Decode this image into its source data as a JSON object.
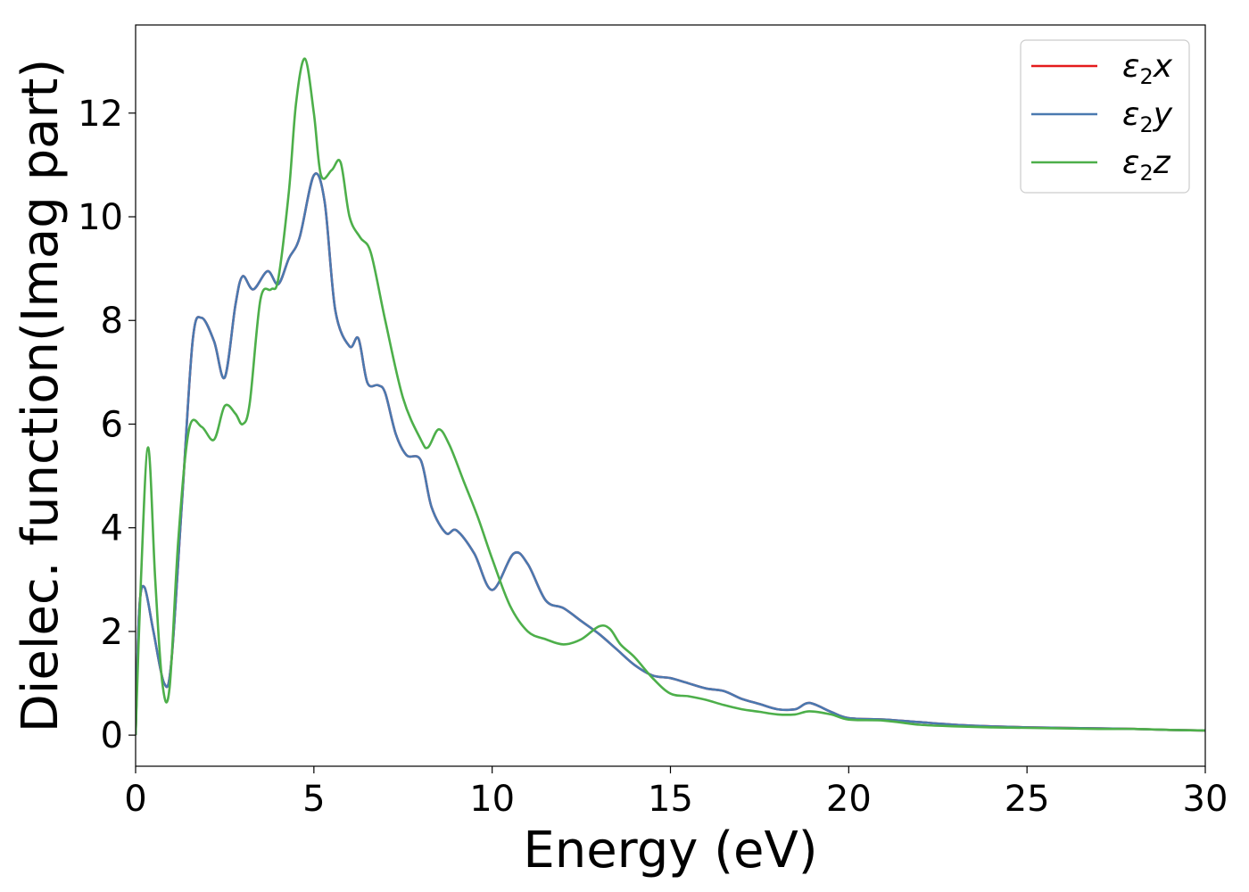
{
  "chart_data": {
    "type": "line",
    "title": "",
    "xlabel": "Energy (eV)",
    "ylabel": "Dielec. function(Imag part)",
    "xlim": [
      0,
      30
    ],
    "ylim": [
      -0.6,
      13.7
    ],
    "xticks": [
      "0",
      "5",
      "10",
      "15",
      "20",
      "25",
      "30"
    ],
    "yticks": [
      "0",
      "2",
      "4",
      "6",
      "8",
      "10",
      "12"
    ],
    "grid": false,
    "legend_position": "top-right",
    "series": [
      {
        "name": "ε2x",
        "label_main": "ε",
        "label_sub": "2",
        "label_tail": "x",
        "color": "#e41a1c",
        "x": [
          0.0,
          0.1,
          0.25,
          0.5,
          0.8,
          1.0,
          1.3,
          1.6,
          1.85,
          2.2,
          2.5,
          2.8,
          3.0,
          3.3,
          3.7,
          4.0,
          4.3,
          4.6,
          5.0,
          5.3,
          5.6,
          6.0,
          6.25,
          6.5,
          6.8,
          7.0,
          7.3,
          7.6,
          8.0,
          8.3,
          8.7,
          9.0,
          9.5,
          10.0,
          10.6,
          11.0,
          11.5,
          12.0,
          12.5,
          13.0,
          13.5,
          14.0,
          14.5,
          15.0,
          15.5,
          16.0,
          16.5,
          17.0,
          17.5,
          18.0,
          18.5,
          18.9,
          19.5,
          20.0,
          21.0,
          22.0,
          23.0,
          24.0,
          25.0,
          26.0,
          27.0,
          28.0,
          29.0,
          30.0
        ],
        "y": [
          0.0,
          2.4,
          2.85,
          2.0,
          1.0,
          1.4,
          4.5,
          7.6,
          8.05,
          7.6,
          6.9,
          8.3,
          8.85,
          8.6,
          8.95,
          8.7,
          9.2,
          9.6,
          10.8,
          10.3,
          8.2,
          7.5,
          7.65,
          6.8,
          6.75,
          6.6,
          5.8,
          5.4,
          5.3,
          4.4,
          3.9,
          3.95,
          3.5,
          2.8,
          3.5,
          3.3,
          2.6,
          2.45,
          2.2,
          1.95,
          1.65,
          1.35,
          1.15,
          1.1,
          1.0,
          0.9,
          0.85,
          0.7,
          0.6,
          0.5,
          0.5,
          0.62,
          0.45,
          0.33,
          0.3,
          0.25,
          0.2,
          0.17,
          0.15,
          0.14,
          0.13,
          0.12,
          0.1,
          0.09
        ]
      },
      {
        "name": "ε2y",
        "label_main": "ε",
        "label_sub": "2",
        "label_tail": "y",
        "color": "#4a79b0",
        "x": [
          0.0,
          0.1,
          0.25,
          0.5,
          0.8,
          1.0,
          1.3,
          1.6,
          1.85,
          2.2,
          2.5,
          2.8,
          3.0,
          3.3,
          3.7,
          4.0,
          4.3,
          4.6,
          5.0,
          5.3,
          5.6,
          6.0,
          6.25,
          6.5,
          6.8,
          7.0,
          7.3,
          7.6,
          8.0,
          8.3,
          8.7,
          9.0,
          9.5,
          10.0,
          10.6,
          11.0,
          11.5,
          12.0,
          12.5,
          13.0,
          13.5,
          14.0,
          14.5,
          15.0,
          15.5,
          16.0,
          16.5,
          17.0,
          17.5,
          18.0,
          18.5,
          18.9,
          19.5,
          20.0,
          21.0,
          22.0,
          23.0,
          24.0,
          25.0,
          26.0,
          27.0,
          28.0,
          29.0,
          30.0
        ],
        "y": [
          0.0,
          2.4,
          2.85,
          2.0,
          1.0,
          1.4,
          4.5,
          7.6,
          8.05,
          7.6,
          6.9,
          8.3,
          8.85,
          8.6,
          8.95,
          8.7,
          9.2,
          9.6,
          10.8,
          10.3,
          8.2,
          7.5,
          7.65,
          6.8,
          6.75,
          6.6,
          5.8,
          5.4,
          5.3,
          4.4,
          3.9,
          3.95,
          3.5,
          2.8,
          3.5,
          3.3,
          2.6,
          2.45,
          2.2,
          1.95,
          1.65,
          1.35,
          1.15,
          1.1,
          1.0,
          0.9,
          0.85,
          0.7,
          0.6,
          0.5,
          0.5,
          0.62,
          0.45,
          0.33,
          0.3,
          0.25,
          0.2,
          0.17,
          0.15,
          0.14,
          0.13,
          0.12,
          0.1,
          0.09
        ]
      },
      {
        "name": "ε2z",
        "label_main": "ε",
        "label_sub": "2",
        "label_tail": "z",
        "color": "#4daf4a",
        "x": [
          0.0,
          0.15,
          0.35,
          0.55,
          0.75,
          0.95,
          1.2,
          1.5,
          1.85,
          2.2,
          2.5,
          2.8,
          3.0,
          3.2,
          3.5,
          3.8,
          4.0,
          4.3,
          4.5,
          4.75,
          5.0,
          5.2,
          5.5,
          5.75,
          6.0,
          6.3,
          6.6,
          7.0,
          7.5,
          8.0,
          8.2,
          8.5,
          8.8,
          9.2,
          9.6,
          10.0,
          10.5,
          11.0,
          11.5,
          12.0,
          12.5,
          13.0,
          13.3,
          13.6,
          14.0,
          14.5,
          15.0,
          15.5,
          16.0,
          16.5,
          17.0,
          17.5,
          18.0,
          18.5,
          18.9,
          19.5,
          20.0,
          21.0,
          22.0,
          23.0,
          24.0,
          25.0,
          26.0,
          27.0,
          28.0,
          29.0,
          30.0
        ],
        "y": [
          0.0,
          3.0,
          5.55,
          3.0,
          1.0,
          0.9,
          3.8,
          5.9,
          5.95,
          5.7,
          6.35,
          6.2,
          6.0,
          6.4,
          8.4,
          8.6,
          8.8,
          10.5,
          12.2,
          13.05,
          12.0,
          10.8,
          10.9,
          11.05,
          10.0,
          9.6,
          9.3,
          8.0,
          6.5,
          5.7,
          5.55,
          5.9,
          5.6,
          4.9,
          4.2,
          3.4,
          2.5,
          2.0,
          1.85,
          1.75,
          1.85,
          2.1,
          2.05,
          1.75,
          1.5,
          1.1,
          0.8,
          0.75,
          0.68,
          0.58,
          0.5,
          0.45,
          0.4,
          0.4,
          0.46,
          0.4,
          0.3,
          0.28,
          0.2,
          0.17,
          0.15,
          0.14,
          0.13,
          0.12,
          0.12,
          0.1,
          0.09
        ]
      }
    ]
  }
}
